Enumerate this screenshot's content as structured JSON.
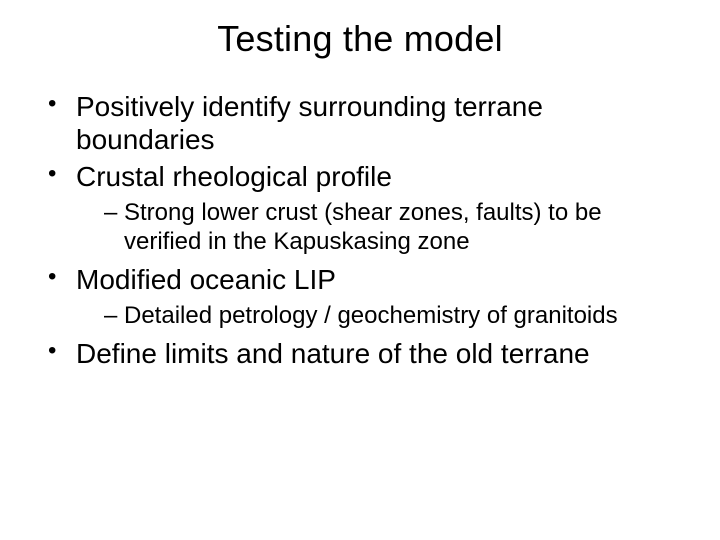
{
  "slide": {
    "title": "Testing the model",
    "bullets": [
      {
        "text": "Positively identify surrounding terrane boundaries",
        "sub": []
      },
      {
        "text": "Crustal rheological profile",
        "sub": [
          {
            "text": "Strong lower crust (shear zones, faults) to be verified in the Kapuskasing zone"
          }
        ]
      },
      {
        "text": "Modified oceanic LIP",
        "sub": [
          {
            "text": "Detailed petrology / geochemistry of granitoids"
          }
        ]
      },
      {
        "text": "Define limits and nature of the old terrane",
        "sub": []
      }
    ],
    "style": {
      "background_color": "#ffffff",
      "text_color": "#000000",
      "title_fontsize": 36,
      "bullet_fontsize": 28,
      "subbullet_fontsize": 24,
      "font_family": "Arial"
    }
  }
}
